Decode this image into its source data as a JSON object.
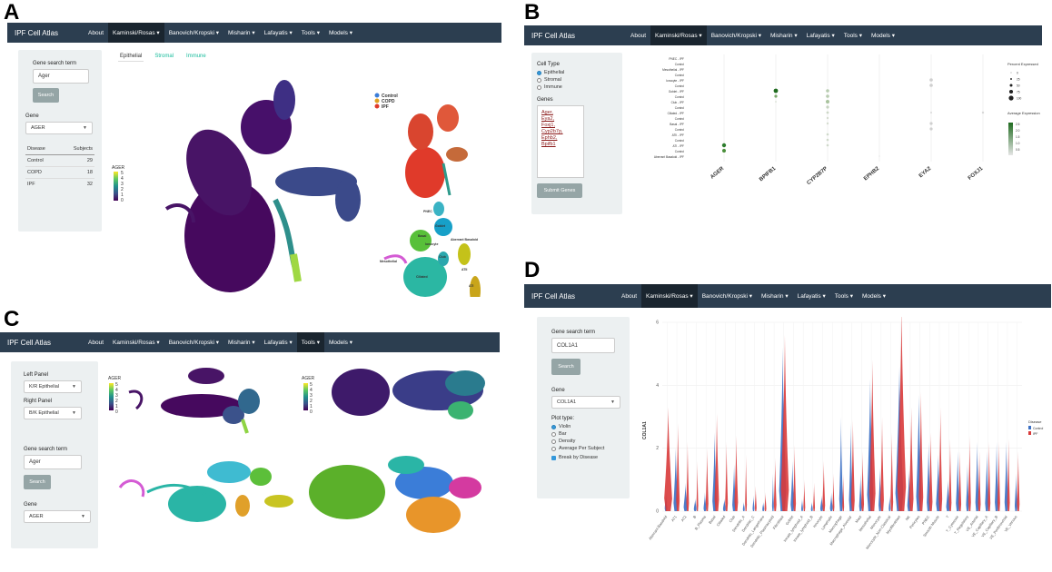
{
  "panels": {
    "a": {
      "letter": "A",
      "navbar": {
        "brand": "IPF Cell Atlas",
        "items": [
          "About",
          "Kaminski/Rosas ▾",
          "Banovich/Kropski ▾",
          "Misharin ▾",
          "Lafayatis ▾",
          "Tools ▾",
          "Models ▾"
        ]
      },
      "sidebar": {
        "gene_search_label": "Gene search term",
        "gene_search_value": "Ager",
        "search_button": "Search",
        "gene_label": "Gene",
        "gene_select": "AGER",
        "table_headers": [
          "Disease",
          "Subjects"
        ],
        "table_rows": [
          [
            "Control",
            "29"
          ],
          [
            "COPD",
            "18"
          ],
          [
            "IPF",
            "32"
          ]
        ]
      },
      "tabs": [
        "Epithelial",
        "Stromal",
        "Immune"
      ],
      "colorbar_title": "AGER",
      "colorbar_ticks": [
        "5",
        "4",
        "3",
        "2",
        "1",
        "0"
      ],
      "disease_legend": [
        {
          "label": "Control",
          "color": "#3b7dd8"
        },
        {
          "label": "COPD",
          "color": "#e0a020"
        },
        {
          "label": "IPF",
          "color": "#e03a2a"
        }
      ],
      "cluster_labels": [
        "PNEC",
        "Goblet",
        "Basal",
        "Ionocyte",
        "Aberrant Basaloid",
        "Club",
        "Mesothelial",
        "ATI",
        "ATII",
        "Ciliated"
      ]
    },
    "b": {
      "letter": "B",
      "navbar": {
        "brand": "IPF Cell Atlas",
        "items": [
          "About",
          "Kaminski/Rosas ▾",
          "Banovich/Kropski ▾",
          "Misharin ▾",
          "Lafayatis ▾",
          "Tools ▾",
          "Models ▾"
        ]
      },
      "sidebar": {
        "cell_type_label": "Cell Type",
        "cell_types": [
          "Epithelial",
          "Stromal",
          "Immune"
        ],
        "genes_label": "Genes",
        "genes_text": [
          "Ager,",
          "Eya2,",
          "Foxj1,",
          "Cyp2b7p,",
          "Ephb2,",
          "Bpifb1"
        ],
        "submit_button": "Submit Genes"
      },
      "dotplot_rows": [
        "PNEC - IPF",
        "Control",
        "Mesothelial - IPF",
        "Control",
        "Ionocyte - IPF",
        "Control",
        "Goblet - IPF",
        "Control",
        "Club - IPF",
        "Control",
        "Ciliated - IPF",
        "Control",
        "Basal - IPF",
        "Control",
        "ATII - IPF",
        "Control",
        "ATI - IPF",
        "Control",
        "Aberrant Basaloid - IPF"
      ],
      "dotplot_genes": [
        "AGER",
        "BPIFB1",
        "CYP2B7P",
        "EPHB2",
        "EYA2",
        "FOXJ1"
      ],
      "legend_percent_title": "Percent Expressed",
      "legend_percent_values": [
        "0",
        "25",
        "50",
        "75",
        "100"
      ],
      "legend_avg_title": "Average Expression",
      "legend_avg_values": [
        "2.5",
        "2.0",
        "1.5",
        "1.0",
        "0.5"
      ]
    },
    "c": {
      "letter": "C",
      "navbar": {
        "brand": "IPF Cell Atlas",
        "items": [
          "About",
          "Kaminski/Rosas ▾",
          "Banovich/Kropski ▾",
          "Misharin ▾",
          "Lafayatis ▾",
          "Tools ▾",
          "Models ▾"
        ]
      },
      "sidebar": {
        "left_panel_label": "Left Panel",
        "left_panel_value": "K/R Epithelial",
        "right_panel_label": "Right Panel",
        "right_panel_value": "B/K Epithelial",
        "gene_search_label": "Gene search term",
        "gene_search_value": "Ager",
        "search_button": "Search",
        "gene_label": "Gene",
        "gene_select": "AGER"
      },
      "colorbar_title": "AGER",
      "colorbar_ticks": [
        "5",
        "4",
        "3",
        "2",
        "1",
        "0"
      ]
    },
    "d": {
      "letter": "D",
      "navbar": {
        "brand": "IPF Cell Atlas",
        "items": [
          "About",
          "Kaminski/Rosas ▾",
          "Banovich/Kropski ▾",
          "Misharin ▾",
          "Lafayatis ▾",
          "Tools ▾",
          "Models ▾"
        ]
      },
      "sidebar": {
        "gene_search_label": "Gene search term",
        "gene_search_value": "COL1A1",
        "search_button": "Search",
        "gene_label": "Gene",
        "gene_select": "COL1A1",
        "plot_type_label": "Plot type:",
        "plot_types": [
          "Violin",
          "Bar",
          "Density",
          "Average Per Subject"
        ],
        "break_by_disease": "Break by Disease"
      },
      "ylabel": "COL1A1",
      "legend_title": "Disease",
      "legend_items": [
        {
          "label": "Control",
          "color": "#3b6fc4"
        },
        {
          "label": "IPF",
          "color": "#d93a3a"
        }
      ]
    }
  },
  "chart_data": {
    "type": "violin",
    "ylabel": "COL1A1",
    "ylim": [
      0,
      6
    ],
    "yticks": [
      0,
      2,
      4,
      6
    ],
    "categories": [
      "Aberrant Basaloid",
      "AT1",
      "AT2",
      "B",
      "B_Plasma",
      "Basal",
      "Ciliated",
      "Club",
      "Dendritic_A",
      "Dendritic_C",
      "Dendritic_Langerhans",
      "Dendritic_Plasmacytoid",
      "Fibroblast",
      "Goblet",
      "Innate_lymphoid_A",
      "Innate_lymphoid_B",
      "Ionocyte",
      "Lymphatic",
      "Macrophage",
      "Macrophage_Alveolar",
      "Mast",
      "Mesothelial",
      "Monocyte",
      "Monocyte_Non-Classical",
      "Myofibroblast",
      "NK",
      "Pericytes",
      "PNEC",
      "Smooth Muscle",
      "T",
      "T_Cytotoxic",
      "T_Regulatory",
      "VE_Arterial",
      "VE_Capillary_A",
      "VE_Capillary_B",
      "VE_Peribronchial",
      "VE_Venous"
    ],
    "series": [
      {
        "name": "Control",
        "max": [
          0.6,
          2.0,
          0.9,
          0.4,
          0.6,
          2.5,
          0.4,
          1.5,
          0.3,
          0.5,
          0.3,
          1.2,
          5.2,
          1.6,
          0.4,
          0.3,
          0.5,
          0.6,
          3.0,
          2.8,
          1.2,
          4.2,
          1.4,
          0.5,
          4.6,
          1.3,
          3.7,
          2.2,
          1.8,
          1.0,
          1.9,
          1.5,
          2.2,
          1.9,
          2.2,
          2.2,
          1.2
        ],
        "width": [
          0.3,
          0.5,
          0.4,
          0.3,
          0.3,
          0.5,
          0.3,
          0.4,
          0.2,
          0.2,
          0.2,
          0.2,
          0.8,
          0.4,
          0.2,
          0.2,
          0.3,
          0.3,
          0.4,
          0.4,
          0.3,
          0.7,
          0.3,
          0.2,
          0.9,
          0.4,
          0.6,
          0.4,
          0.5,
          0.4,
          0.4,
          0.3,
          0.4,
          0.4,
          0.4,
          0.4,
          0.3
        ]
      },
      {
        "name": "IPF",
        "max": [
          3.3,
          2.8,
          2.2,
          1.6,
          2.0,
          3.1,
          2.2,
          2.4,
          1.8,
          0.8,
          0.6,
          1.7,
          5.6,
          2.1,
          1.0,
          0.9,
          1.6,
          1.2,
          1.2,
          2.9,
          1.9,
          4.8,
          3.0,
          2.5,
          6.5,
          3.3,
          3.8,
          2.5,
          3.3,
          2.3,
          1.9,
          2.4,
          1.9,
          2.2,
          2.2,
          2.3,
          1.9
        ],
        "width": [
          0.9,
          0.4,
          0.3,
          0.2,
          0.3,
          0.5,
          0.3,
          0.4,
          0.2,
          0.2,
          0.2,
          0.3,
          0.9,
          0.3,
          0.2,
          0.2,
          0.3,
          0.2,
          0.2,
          0.4,
          0.3,
          0.7,
          0.4,
          0.3,
          1.0,
          0.5,
          0.5,
          0.4,
          0.4,
          0.3,
          0.3,
          0.3,
          0.3,
          0.3,
          0.3,
          0.3,
          0.3
        ]
      }
    ],
    "legend_position": "right",
    "grid": true
  }
}
